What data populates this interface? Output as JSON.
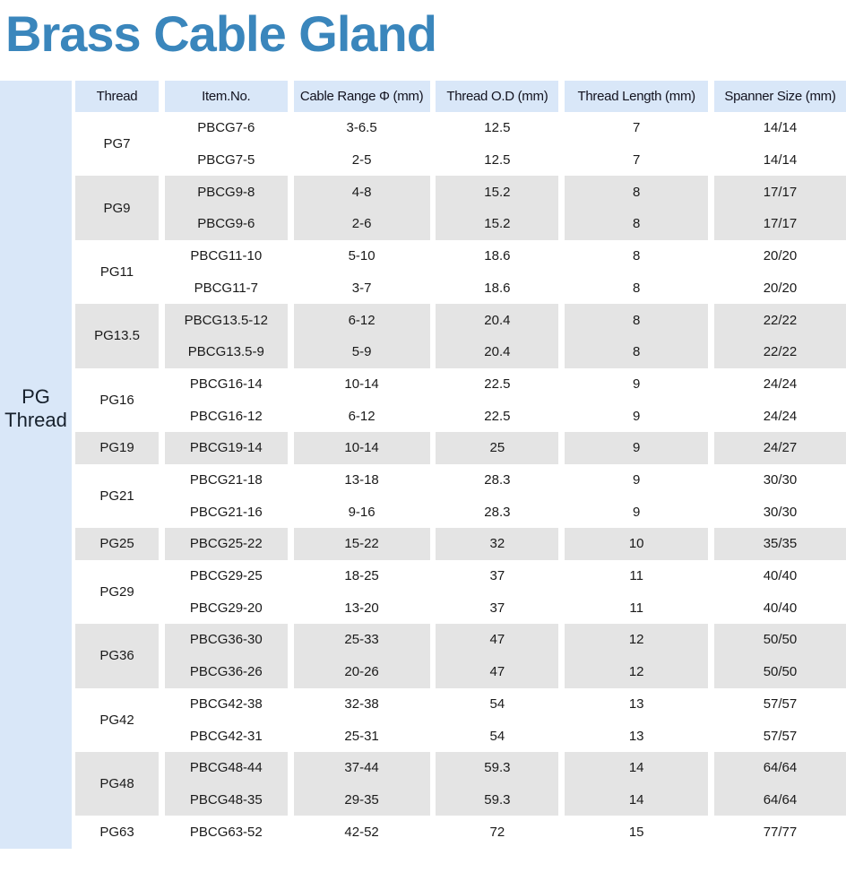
{
  "title": "Brass Cable Gland",
  "colors": {
    "title_blue": "#3a86bc",
    "header_bg": "#d9e7f8",
    "row_gray": "#e4e4e4",
    "row_white": "#ffffff",
    "text_dark": "#1a1a1a"
  },
  "sidebar": {
    "label_line1": "PG",
    "label_line2": "Thread"
  },
  "table": {
    "columns": [
      "Thread",
      "Item.No.",
      "Cable Range Φ (mm)",
      "Thread O.D (mm)",
      "Thread Length (mm)",
      "Spanner Size (mm)"
    ],
    "groups": [
      {
        "thread": "PG7",
        "shade": "white",
        "rows": [
          {
            "item_no": "PBCG7-6",
            "cable_range": "3-6.5",
            "thread_od": "12.5",
            "thread_length": "7",
            "spanner_size": "14/14"
          },
          {
            "item_no": "PBCG7-5",
            "cable_range": "2-5",
            "thread_od": "12.5",
            "thread_length": "7",
            "spanner_size": "14/14"
          }
        ]
      },
      {
        "thread": "PG9",
        "shade": "gray",
        "rows": [
          {
            "item_no": "PBCG9-8",
            "cable_range": "4-8",
            "thread_od": "15.2",
            "thread_length": "8",
            "spanner_size": "17/17"
          },
          {
            "item_no": "PBCG9-6",
            "cable_range": "2-6",
            "thread_od": "15.2",
            "thread_length": "8",
            "spanner_size": "17/17"
          }
        ]
      },
      {
        "thread": "PG11",
        "shade": "white",
        "rows": [
          {
            "item_no": "PBCG11-10",
            "cable_range": "5-10",
            "thread_od": "18.6",
            "thread_length": "8",
            "spanner_size": "20/20"
          },
          {
            "item_no": "PBCG11-7",
            "cable_range": "3-7",
            "thread_od": "18.6",
            "thread_length": "8",
            "spanner_size": "20/20"
          }
        ]
      },
      {
        "thread": "PG13.5",
        "shade": "gray",
        "rows": [
          {
            "item_no": "PBCG13.5-12",
            "cable_range": "6-12",
            "thread_od": "20.4",
            "thread_length": "8",
            "spanner_size": "22/22"
          },
          {
            "item_no": "PBCG13.5-9",
            "cable_range": "5-9",
            "thread_od": "20.4",
            "thread_length": "8",
            "spanner_size": "22/22"
          }
        ]
      },
      {
        "thread": "PG16",
        "shade": "white",
        "rows": [
          {
            "item_no": "PBCG16-14",
            "cable_range": "10-14",
            "thread_od": "22.5",
            "thread_length": "9",
            "spanner_size": "24/24"
          },
          {
            "item_no": "PBCG16-12",
            "cable_range": "6-12",
            "thread_od": "22.5",
            "thread_length": "9",
            "spanner_size": "24/24"
          }
        ]
      },
      {
        "thread": "PG19",
        "shade": "gray",
        "rows": [
          {
            "item_no": "PBCG19-14",
            "cable_range": "10-14",
            "thread_od": "25",
            "thread_length": "9",
            "spanner_size": "24/27"
          }
        ]
      },
      {
        "thread": "PG21",
        "shade": "white",
        "rows": [
          {
            "item_no": "PBCG21-18",
            "cable_range": "13-18",
            "thread_od": "28.3",
            "thread_length": "9",
            "spanner_size": "30/30"
          },
          {
            "item_no": "PBCG21-16",
            "cable_range": "9-16",
            "thread_od": "28.3",
            "thread_length": "9",
            "spanner_size": "30/30"
          }
        ]
      },
      {
        "thread": "PG25",
        "shade": "gray",
        "rows": [
          {
            "item_no": "PBCG25-22",
            "cable_range": "15-22",
            "thread_od": "32",
            "thread_length": "10",
            "spanner_size": "35/35"
          }
        ]
      },
      {
        "thread": "PG29",
        "shade": "white",
        "rows": [
          {
            "item_no": "PBCG29-25",
            "cable_range": "18-25",
            "thread_od": "37",
            "thread_length": "11",
            "spanner_size": "40/40"
          },
          {
            "item_no": "PBCG29-20",
            "cable_range": "13-20",
            "thread_od": "37",
            "thread_length": "11",
            "spanner_size": "40/40"
          }
        ]
      },
      {
        "thread": "PG36",
        "shade": "gray",
        "rows": [
          {
            "item_no": "PBCG36-30",
            "cable_range": "25-33",
            "thread_od": "47",
            "thread_length": "12",
            "spanner_size": "50/50"
          },
          {
            "item_no": "PBCG36-26",
            "cable_range": "20-26",
            "thread_od": "47",
            "thread_length": "12",
            "spanner_size": "50/50"
          }
        ]
      },
      {
        "thread": "PG42",
        "shade": "white",
        "rows": [
          {
            "item_no": "PBCG42-38",
            "cable_range": "32-38",
            "thread_od": "54",
            "thread_length": "13",
            "spanner_size": "57/57"
          },
          {
            "item_no": "PBCG42-31",
            "cable_range": "25-31",
            "thread_od": "54",
            "thread_length": "13",
            "spanner_size": "57/57"
          }
        ]
      },
      {
        "thread": "PG48",
        "shade": "gray",
        "rows": [
          {
            "item_no": "PBCG48-44",
            "cable_range": "37-44",
            "thread_od": "59.3",
            "thread_length": "14",
            "spanner_size": "64/64"
          },
          {
            "item_no": "PBCG48-35",
            "cable_range": "29-35",
            "thread_od": "59.3",
            "thread_length": "14",
            "spanner_size": "64/64"
          }
        ]
      },
      {
        "thread": "PG63",
        "shade": "white",
        "rows": [
          {
            "item_no": "PBCG63-52",
            "cable_range": "42-52",
            "thread_od": "72",
            "thread_length": "15",
            "spanner_size": "77/77"
          }
        ]
      }
    ]
  }
}
